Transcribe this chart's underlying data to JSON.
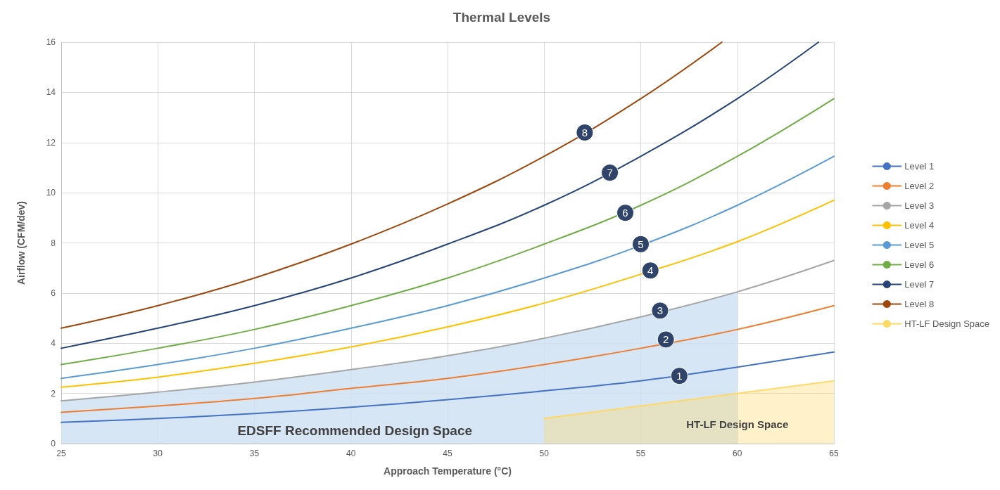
{
  "chart_data": {
    "type": "line",
    "title": "Thermal Levels",
    "xlabel": "Approach Temperature (°C)",
    "ylabel": "Airflow (CFM/dev)",
    "x": [
      25,
      30,
      35,
      40,
      45,
      50,
      55,
      60,
      65
    ],
    "series": [
      {
        "type": "area",
        "color": "#cfe2f3",
        "x": [
          25,
          30,
          35,
          40,
          45,
          50,
          55,
          60,
          60
        ],
        "values": [
          1.7,
          2.05,
          2.45,
          2.95,
          3.5,
          4.2,
          5.05,
          6.05,
          0
        ]
      },
      {
        "name": "Level 1",
        "color": "#4472c4",
        "values": [
          0.85,
          1.0,
          1.2,
          1.45,
          1.75,
          2.1,
          2.5,
          3.05,
          3.65
        ]
      },
      {
        "name": "Level 2",
        "color": "#ed7d31",
        "values": [
          1.25,
          1.5,
          1.8,
          2.2,
          2.6,
          3.15,
          3.8,
          4.55,
          5.5
        ]
      },
      {
        "name": "Level 3",
        "color": "#a5a5a5",
        "values": [
          1.7,
          2.05,
          2.45,
          2.95,
          3.5,
          4.2,
          5.05,
          6.05,
          7.3
        ]
      },
      {
        "name": "Level 4",
        "color": "#ffc000",
        "values": [
          2.25,
          2.65,
          3.2,
          3.85,
          4.65,
          5.6,
          6.75,
          8.05,
          9.7
        ]
      },
      {
        "name": "Level 5",
        "color": "#5b9bd5",
        "values": [
          2.6,
          3.15,
          3.8,
          4.6,
          5.5,
          6.6,
          7.9,
          9.5,
          11.45
        ]
      },
      {
        "name": "Level 6",
        "color": "#70ad47",
        "values": [
          3.15,
          3.8,
          4.55,
          5.5,
          6.6,
          7.95,
          9.5,
          11.45,
          13.75
        ]
      },
      {
        "name": "Level 7",
        "color": "#264478",
        "x": [
          25,
          30,
          35,
          40,
          45,
          50,
          55,
          60,
          64.2
        ],
        "values": [
          3.8,
          4.6,
          5.5,
          6.6,
          7.95,
          9.5,
          11.45,
          13.75,
          16
        ]
      },
      {
        "name": "Level 8",
        "color": "#9e480e",
        "x": [
          25,
          30,
          35,
          40,
          45,
          50,
          55,
          59.2
        ],
        "values": [
          4.6,
          5.5,
          6.6,
          7.95,
          9.55,
          11.45,
          13.75,
          16
        ]
      },
      {
        "name": "HT-LF Design Space",
        "type": "area",
        "color": "#ffd966",
        "x": [
          50,
          65
        ],
        "values": [
          1.0,
          2.5
        ]
      }
    ],
    "xlim": [
      25,
      65
    ],
    "xticks": [
      25,
      30,
      35,
      40,
      45,
      50,
      55,
      60,
      65
    ],
    "ylim": [
      0,
      16
    ],
    "yticks": [
      0,
      2,
      4,
      6,
      8,
      10,
      12,
      14,
      16
    ],
    "grid": true,
    "legend": "right",
    "marker": "none",
    "line_style": "solid",
    "annotations": [
      {
        "text": "1",
        "x": 57,
        "y": 2.7
      },
      {
        "text": "2",
        "x": 56.3,
        "y": 4.15
      },
      {
        "text": "3",
        "x": 56,
        "y": 5.3
      },
      {
        "text": "4",
        "x": 55.5,
        "y": 6.9
      },
      {
        "text": "5",
        "x": 55,
        "y": 7.95
      },
      {
        "text": "6",
        "x": 54.2,
        "y": 9.2
      },
      {
        "text": "7",
        "x": 53.4,
        "y": 10.8
      },
      {
        "text": "8",
        "x": 52.1,
        "y": 12.4
      },
      "EDSFF Recommended Design Space",
      "HT-LF Design Space"
    ]
  }
}
